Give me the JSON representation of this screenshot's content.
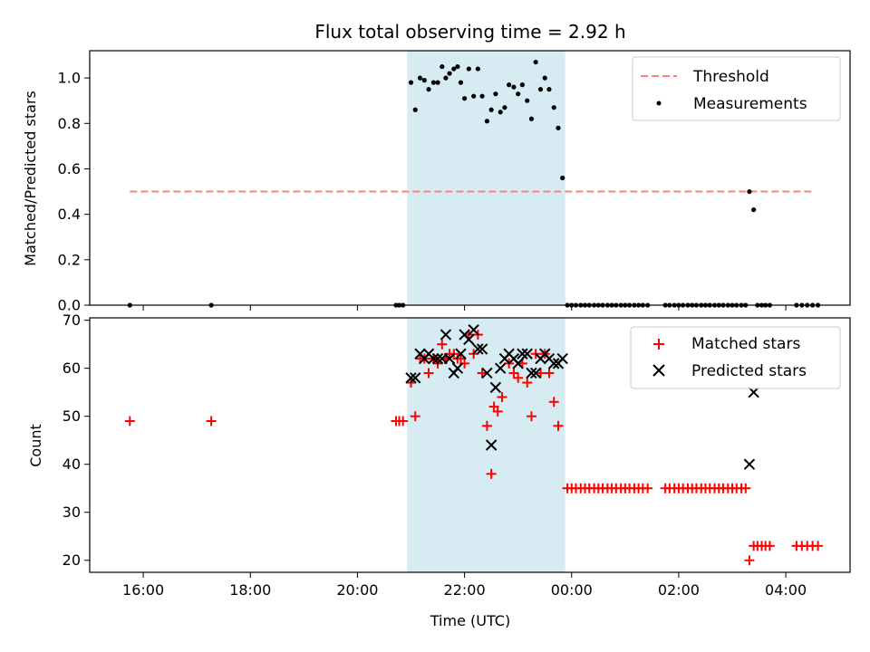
{
  "chart_data": {
    "title": "Flux total observing time = 2.92 h",
    "xlabel": "Time (UTC)",
    "x_ticks": [
      "16:00",
      "18:00",
      "20:00",
      "22:00",
      "00:00",
      "02:00",
      "04:00"
    ],
    "x_tick_hours": [
      16,
      18,
      20,
      22,
      24,
      26,
      28
    ],
    "xlim_hours": [
      15.0,
      29.2
    ],
    "x_unit_note": "hours since midnight of the first day (values above 24 are the next day)",
    "observing_window_hours": [
      20.93,
      23.88
    ],
    "observing_window_color": "#add8e6",
    "panels": [
      {
        "type": "scatter",
        "ylabel": "Matched/Predicted stars",
        "ylim": [
          0,
          1.12
        ],
        "y_ticks": [
          0.0,
          0.2,
          0.4,
          0.6,
          0.8,
          1.0
        ],
        "y_tick_labels": [
          "0.0",
          "0.2",
          "0.4",
          "0.6",
          "0.8",
          "1.0"
        ],
        "legend_position": "upper right",
        "threshold": {
          "name": "Threshold",
          "y": 0.5,
          "x_range": [
            15.75,
            28.52
          ],
          "color": "#ff7f7f",
          "style": "dashed"
        },
        "series": [
          {
            "name": "Measurements",
            "marker": "dot",
            "color": "#000000",
            "points": [
              [
                15.75,
                0.0
              ],
              [
                17.27,
                0.0
              ],
              [
                20.72,
                0.0
              ],
              [
                20.78,
                0.0
              ],
              [
                20.85,
                0.0
              ],
              [
                21.0,
                0.98
              ],
              [
                21.08,
                0.86
              ],
              [
                21.17,
                1.0
              ],
              [
                21.25,
                0.99
              ],
              [
                21.33,
                0.95
              ],
              [
                21.42,
                0.98
              ],
              [
                21.5,
                0.98
              ],
              [
                21.58,
                1.05
              ],
              [
                21.65,
                1.0
              ],
              [
                21.72,
                1.02
              ],
              [
                21.8,
                1.04
              ],
              [
                21.87,
                1.05
              ],
              [
                21.93,
                0.98
              ],
              [
                22.0,
                0.91
              ],
              [
                22.08,
                1.04
              ],
              [
                22.17,
                0.92
              ],
              [
                22.25,
                1.04
              ],
              [
                22.33,
                0.92
              ],
              [
                22.42,
                0.81
              ],
              [
                22.5,
                0.86
              ],
              [
                22.58,
                0.93
              ],
              [
                22.67,
                0.85
              ],
              [
                22.75,
                0.87
              ],
              [
                22.83,
                0.97
              ],
              [
                22.92,
                0.96
              ],
              [
                23.0,
                0.93
              ],
              [
                23.08,
                0.97
              ],
              [
                23.17,
                0.9
              ],
              [
                23.25,
                0.82
              ],
              [
                23.33,
                1.07
              ],
              [
                23.42,
                0.95
              ],
              [
                23.5,
                1.0
              ],
              [
                23.58,
                0.95
              ],
              [
                23.67,
                0.87
              ],
              [
                23.75,
                0.78
              ],
              [
                23.83,
                0.56
              ],
              [
                23.92,
                0.0
              ],
              [
                24.0,
                0.0
              ],
              [
                24.08,
                0.0
              ],
              [
                24.17,
                0.0
              ],
              [
                24.25,
                0.0
              ],
              [
                24.33,
                0.0
              ],
              [
                24.42,
                0.0
              ],
              [
                24.5,
                0.0
              ],
              [
                24.58,
                0.0
              ],
              [
                24.67,
                0.0
              ],
              [
                24.75,
                0.0
              ],
              [
                24.83,
                0.0
              ],
              [
                24.92,
                0.0
              ],
              [
                25.0,
                0.0
              ],
              [
                25.08,
                0.0
              ],
              [
                25.17,
                0.0
              ],
              [
                25.25,
                0.0
              ],
              [
                25.33,
                0.0
              ],
              [
                25.42,
                0.0
              ],
              [
                25.75,
                0.0
              ],
              [
                25.83,
                0.0
              ],
              [
                25.92,
                0.0
              ],
              [
                26.0,
                0.0
              ],
              [
                26.08,
                0.0
              ],
              [
                26.17,
                0.0
              ],
              [
                26.25,
                0.0
              ],
              [
                26.33,
                0.0
              ],
              [
                26.42,
                0.0
              ],
              [
                26.5,
                0.0
              ],
              [
                26.58,
                0.0
              ],
              [
                26.67,
                0.0
              ],
              [
                26.75,
                0.0
              ],
              [
                26.83,
                0.0
              ],
              [
                26.92,
                0.0
              ],
              [
                27.0,
                0.0
              ],
              [
                27.08,
                0.0
              ],
              [
                27.17,
                0.0
              ],
              [
                27.25,
                0.0
              ],
              [
                27.32,
                0.5
              ],
              [
                27.4,
                0.42
              ],
              [
                27.47,
                0.0
              ],
              [
                27.55,
                0.0
              ],
              [
                27.62,
                0.0
              ],
              [
                27.7,
                0.0
              ],
              [
                28.2,
                0.0
              ],
              [
                28.3,
                0.0
              ],
              [
                28.4,
                0.0
              ],
              [
                28.5,
                0.0
              ],
              [
                28.6,
                0.0
              ]
            ]
          }
        ]
      },
      {
        "type": "scatter",
        "ylabel": "Count",
        "ylim": [
          17.5,
          70.5
        ],
        "y_ticks": [
          20,
          30,
          40,
          50,
          60,
          70
        ],
        "y_tick_labels": [
          "20",
          "30",
          "40",
          "50",
          "60",
          "70"
        ],
        "legend_position": "upper right",
        "series": [
          {
            "name": "Matched stars",
            "marker": "plus",
            "color": "#ff0000",
            "points": [
              [
                15.75,
                49
              ],
              [
                17.27,
                49
              ],
              [
                20.72,
                49
              ],
              [
                20.78,
                49
              ],
              [
                20.85,
                49
              ],
              [
                21.0,
                57
              ],
              [
                21.08,
                50
              ],
              [
                21.17,
                62
              ],
              [
                21.25,
                62
              ],
              [
                21.33,
                59
              ],
              [
                21.42,
                62
              ],
              [
                21.5,
                61
              ],
              [
                21.58,
                65
              ],
              [
                21.65,
                62
              ],
              [
                21.72,
                63
              ],
              [
                21.8,
                63
              ],
              [
                21.87,
                62
              ],
              [
                21.93,
                62
              ],
              [
                22.0,
                61
              ],
              [
                22.08,
                67
              ],
              [
                22.17,
                63
              ],
              [
                22.25,
                67
              ],
              [
                22.33,
                59
              ],
              [
                22.42,
                48
              ],
              [
                22.5,
                38
              ],
              [
                22.55,
                52
              ],
              [
                22.62,
                51
              ],
              [
                22.7,
                54
              ],
              [
                22.83,
                61
              ],
              [
                22.92,
                59
              ],
              [
                23.0,
                58
              ],
              [
                23.08,
                61
              ],
              [
                23.17,
                57
              ],
              [
                23.25,
                50
              ],
              [
                23.33,
                63
              ],
              [
                23.42,
                59
              ],
              [
                23.5,
                63
              ],
              [
                23.58,
                59
              ],
              [
                23.67,
                53
              ],
              [
                23.75,
                48
              ],
              [
                23.92,
                35
              ],
              [
                24.0,
                35
              ],
              [
                24.08,
                35
              ],
              [
                24.17,
                35
              ],
              [
                24.25,
                35
              ],
              [
                24.33,
                35
              ],
              [
                24.42,
                35
              ],
              [
                24.5,
                35
              ],
              [
                24.58,
                35
              ],
              [
                24.67,
                35
              ],
              [
                24.75,
                35
              ],
              [
                24.83,
                35
              ],
              [
                24.92,
                35
              ],
              [
                25.0,
                35
              ],
              [
                25.08,
                35
              ],
              [
                25.17,
                35
              ],
              [
                25.25,
                35
              ],
              [
                25.33,
                35
              ],
              [
                25.42,
                35
              ],
              [
                25.75,
                35
              ],
              [
                25.83,
                35
              ],
              [
                25.92,
                35
              ],
              [
                26.0,
                35
              ],
              [
                26.08,
                35
              ],
              [
                26.17,
                35
              ],
              [
                26.25,
                35
              ],
              [
                26.33,
                35
              ],
              [
                26.42,
                35
              ],
              [
                26.5,
                35
              ],
              [
                26.58,
                35
              ],
              [
                26.67,
                35
              ],
              [
                26.75,
                35
              ],
              [
                26.83,
                35
              ],
              [
                26.92,
                35
              ],
              [
                27.0,
                35
              ],
              [
                27.08,
                35
              ],
              [
                27.17,
                35
              ],
              [
                27.25,
                35
              ],
              [
                27.32,
                20
              ],
              [
                27.4,
                23
              ],
              [
                27.47,
                23
              ],
              [
                27.55,
                23
              ],
              [
                27.62,
                23
              ],
              [
                27.7,
                23
              ],
              [
                28.2,
                23
              ],
              [
                28.3,
                23
              ],
              [
                28.4,
                23
              ],
              [
                28.5,
                23
              ],
              [
                28.6,
                23
              ]
            ]
          },
          {
            "name": "Predicted stars",
            "marker": "x",
            "color": "#000000",
            "points": [
              [
                21.0,
                58
              ],
              [
                21.08,
                58
              ],
              [
                21.17,
                63
              ],
              [
                21.25,
                62
              ],
              [
                21.33,
                63
              ],
              [
                21.42,
                62
              ],
              [
                21.5,
                62
              ],
              [
                21.58,
                62
              ],
              [
                21.65,
                67
              ],
              [
                21.72,
                62
              ],
              [
                21.8,
                59
              ],
              [
                21.87,
                60
              ],
              [
                21.93,
                63
              ],
              [
                22.0,
                67
              ],
              [
                22.08,
                66
              ],
              [
                22.17,
                68
              ],
              [
                22.25,
                64
              ],
              [
                22.33,
                64
              ],
              [
                22.42,
                59
              ],
              [
                22.5,
                44
              ],
              [
                22.58,
                56
              ],
              [
                22.67,
                60
              ],
              [
                22.75,
                62
              ],
              [
                22.83,
                63
              ],
              [
                22.92,
                62
              ],
              [
                23.0,
                61
              ],
              [
                23.08,
                63
              ],
              [
                23.17,
                63
              ],
              [
                23.25,
                59
              ],
              [
                23.33,
                59
              ],
              [
                23.42,
                62
              ],
              [
                23.5,
                63
              ],
              [
                23.58,
                62
              ],
              [
                23.67,
                61
              ],
              [
                23.75,
                61
              ],
              [
                23.83,
                62
              ],
              [
                27.32,
                40
              ],
              [
                27.4,
                55
              ]
            ]
          }
        ]
      }
    ]
  }
}
